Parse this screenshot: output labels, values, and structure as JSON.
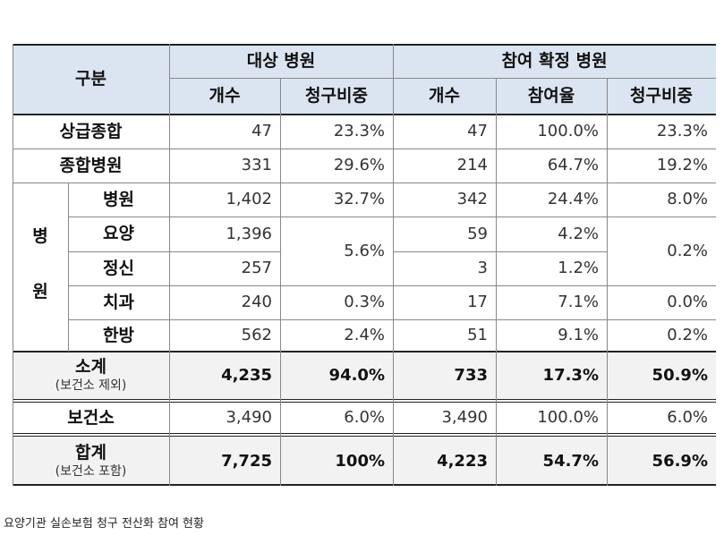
{
  "table": {
    "header": {
      "category": "구분",
      "group_target": "대상 병원",
      "group_confirmed": "참여 확정 병원",
      "col_count": "개수",
      "col_share": "청구비중",
      "col_count2": "개수",
      "col_rate": "참여율",
      "col_share2": "청구비중"
    },
    "rows": [
      {
        "label": "상급종합",
        "count": "47",
        "share": "23.3%",
        "count2": "47",
        "rate": "100.0%",
        "share2": "23.3%"
      },
      {
        "label": "종합병원",
        "count": "331",
        "share": "29.6%",
        "count2": "214",
        "rate": "64.7%",
        "share2": "19.2%"
      }
    ],
    "hospital_group": {
      "label_top": "병",
      "label_bottom": "원",
      "rows": [
        {
          "label": "병원",
          "count": "1,402",
          "share": "32.7%",
          "count2": "342",
          "rate": "24.4%",
          "share2": "8.0%"
        },
        {
          "label": "요양",
          "count": "1,396",
          "count2": "59",
          "rate": "4.2%"
        },
        {
          "label": "정신",
          "count": "257",
          "count2": "3",
          "rate": "1.2%"
        },
        {
          "label": "치과",
          "count": "240",
          "share": "0.3%",
          "count2": "17",
          "rate": "7.1%",
          "share2": "0.0%"
        },
        {
          "label": "한방",
          "count": "562",
          "share": "2.4%",
          "count2": "51",
          "rate": "9.1%",
          "share2": "0.2%"
        }
      ],
      "merged_share": "5.6%",
      "merged_share2": "0.2%"
    },
    "subtotal": {
      "label": "소계",
      "note": "(보건소 제외)",
      "count": "4,235",
      "share": "94.0%",
      "count2": "733",
      "rate": "17.3%",
      "share2": "50.9%"
    },
    "health_center": {
      "label": "보건소",
      "count": "3,490",
      "share": "6.0%",
      "count2": "3,490",
      "rate": "100.0%",
      "share2": "6.0%"
    },
    "total": {
      "label": "합계",
      "note": "(보건소 포함)",
      "count": "7,725",
      "share": "100%",
      "count2": "4,223",
      "rate": "54.7%",
      "share2": "56.9%"
    }
  },
  "caption": "요양기관 실손보험 청구 전산화 참여 현황",
  "colors": {
    "header_bg": "#dbe5f1",
    "summary_bg": "#f2f2f2"
  }
}
